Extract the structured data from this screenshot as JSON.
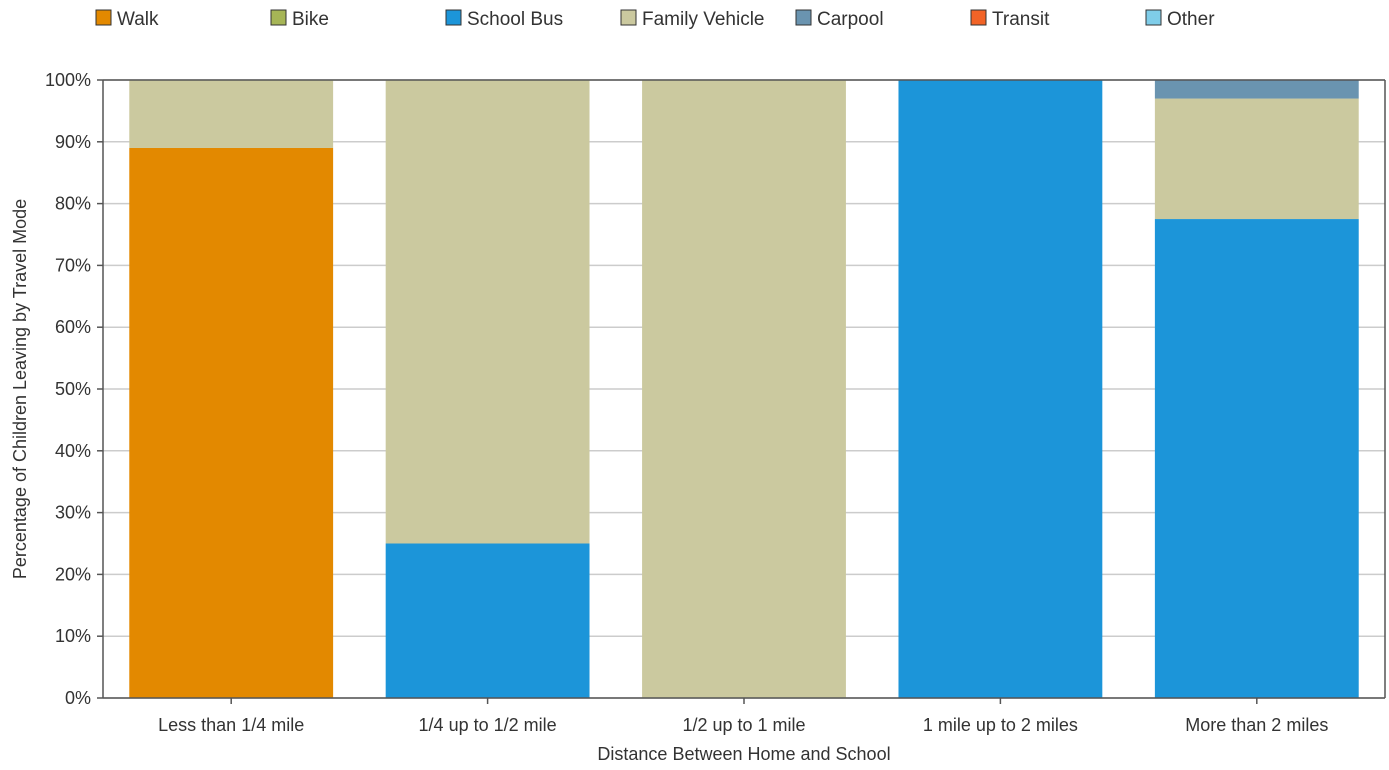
{
  "chart_data": {
    "type": "bar",
    "stacked": true,
    "categories": [
      "Less than 1/4 mile",
      "1/4 up to 1/2 mile",
      "1/2 up to 1 mile",
      "1 mile up to 2 miles",
      "More than 2 miles"
    ],
    "series": [
      {
        "name": "Walk",
        "color": "#e38900",
        "values": [
          89,
          0,
          0,
          0,
          0
        ]
      },
      {
        "name": "Bike",
        "color": "#a6b556",
        "values": [
          0,
          0,
          0,
          0,
          0
        ]
      },
      {
        "name": "School Bus",
        "color": "#1c95d9",
        "values": [
          0,
          25,
          0,
          100,
          77.5
        ]
      },
      {
        "name": "Family Vehicle",
        "color": "#cbc99f",
        "values": [
          11,
          75,
          100,
          0,
          19.5
        ]
      },
      {
        "name": "Carpool",
        "color": "#6a94b0",
        "values": [
          0,
          0,
          0,
          0,
          3
        ]
      },
      {
        "name": "Transit",
        "color": "#f26326",
        "values": [
          0,
          0,
          0,
          0,
          0
        ]
      },
      {
        "name": "Other",
        "color": "#7fcde9",
        "values": [
          0,
          0,
          0,
          0,
          0
        ]
      }
    ],
    "xlabel": "Distance Between Home and School",
    "ylabel": "Percentage of Children Leaving by Travel Mode",
    "ylim": [
      0,
      100
    ],
    "yticks": [
      0,
      10,
      20,
      30,
      40,
      50,
      60,
      70,
      80,
      90,
      100
    ],
    "ytick_suffix": "%",
    "grid": true,
    "legend_position": "top"
  }
}
